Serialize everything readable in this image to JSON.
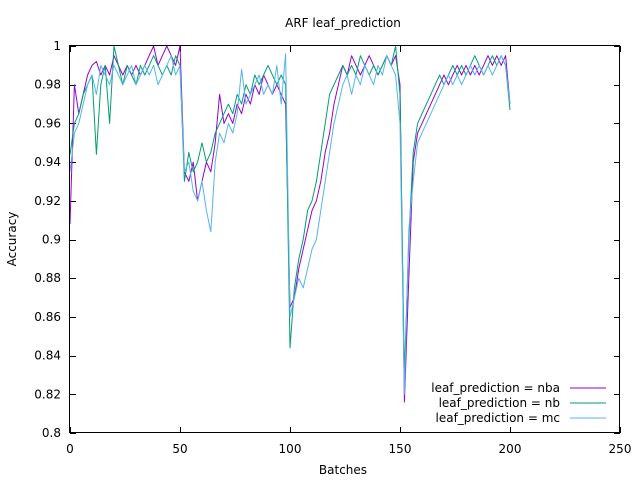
{
  "chart_data": {
    "type": "line",
    "title": "ARF leaf_prediction",
    "xlabel": "Batches",
    "ylabel": "Accuracy",
    "xlim": [
      0,
      250
    ],
    "ylim": [
      0.8,
      1.0
    ],
    "xticks": [
      0,
      50,
      100,
      150,
      200,
      250
    ],
    "yticks": [
      0.8,
      0.82,
      0.84,
      0.86,
      0.88,
      0.9,
      0.92,
      0.94,
      0.96,
      0.98,
      1.0
    ],
    "ytick_labels": [
      "0.8",
      "0.82",
      "0.84",
      "0.86",
      "0.88",
      "0.9",
      "0.92",
      "0.94",
      "0.96",
      "0.98",
      "1"
    ],
    "legend_position": "bottom-right",
    "grid": false,
    "series": [
      {
        "name": "leaf_prediction = nba",
        "color": "#9400d3",
        "x": [
          0,
          2,
          4,
          6,
          8,
          10,
          12,
          14,
          16,
          18,
          20,
          22,
          24,
          26,
          28,
          30,
          32,
          34,
          36,
          38,
          40,
          42,
          44,
          46,
          48,
          50,
          52,
          54,
          56,
          58,
          60,
          62,
          64,
          66,
          68,
          70,
          72,
          74,
          76,
          78,
          80,
          82,
          84,
          86,
          88,
          90,
          92,
          94,
          96,
          98,
          100,
          102,
          104,
          106,
          108,
          110,
          112,
          114,
          116,
          118,
          120,
          122,
          124,
          126,
          128,
          130,
          132,
          134,
          136,
          138,
          140,
          142,
          144,
          146,
          148,
          150,
          152,
          154,
          156,
          158,
          160,
          162,
          164,
          166,
          168,
          170,
          172,
          174,
          176,
          178,
          180,
          182,
          184,
          186,
          188,
          190,
          192,
          194,
          196,
          198,
          200
        ],
        "values": [
          0.908,
          0.98,
          0.965,
          0.975,
          0.985,
          0.99,
          0.992,
          0.985,
          0.99,
          0.985,
          0.995,
          0.99,
          0.985,
          0.99,
          0.985,
          0.99,
          0.985,
          0.99,
          0.995,
          1.0,
          0.99,
          0.995,
          1.0,
          0.995,
          0.99,
          1.0,
          0.935,
          0.93,
          0.94,
          0.92,
          0.93,
          0.94,
          0.935,
          0.95,
          0.975,
          0.96,
          0.965,
          0.96,
          0.97,
          0.965,
          0.975,
          0.97,
          0.98,
          0.975,
          0.985,
          0.98,
          0.975,
          0.98,
          0.975,
          0.97,
          0.865,
          0.87,
          0.885,
          0.895,
          0.905,
          0.915,
          0.92,
          0.93,
          0.945,
          0.955,
          0.97,
          0.98,
          0.99,
          0.985,
          0.995,
          0.99,
          0.985,
          0.99,
          0.995,
          0.99,
          0.985,
          0.99,
          0.995,
          0.99,
          0.995,
          0.98,
          0.816,
          0.88,
          0.94,
          0.955,
          0.96,
          0.965,
          0.97,
          0.975,
          0.98,
          0.985,
          0.98,
          0.985,
          0.99,
          0.985,
          0.99,
          0.985,
          0.99,
          0.985,
          0.99,
          0.995,
          0.99,
          0.995,
          0.99,
          0.995,
          0.97
        ]
      },
      {
        "name": "leaf_prediction = nb",
        "color": "#009e73",
        "x": [
          0,
          2,
          4,
          6,
          8,
          10,
          12,
          14,
          16,
          18,
          20,
          22,
          24,
          26,
          28,
          30,
          32,
          34,
          36,
          38,
          40,
          42,
          44,
          46,
          48,
          50,
          52,
          54,
          56,
          58,
          60,
          62,
          64,
          66,
          68,
          70,
          72,
          74,
          76,
          78,
          80,
          82,
          84,
          86,
          88,
          90,
          92,
          94,
          96,
          98,
          100,
          102,
          104,
          106,
          108,
          110,
          112,
          114,
          116,
          118,
          120,
          122,
          124,
          126,
          128,
          130,
          132,
          134,
          136,
          138,
          140,
          142,
          144,
          146,
          148,
          150,
          152,
          154,
          156,
          158,
          160,
          162,
          164,
          166,
          168,
          170,
          172,
          174,
          176,
          178,
          180,
          182,
          184,
          186,
          188,
          190,
          192,
          194,
          196,
          198,
          200
        ],
        "values": [
          0.944,
          0.96,
          0.965,
          0.975,
          0.98,
          0.985,
          0.944,
          0.98,
          0.99,
          0.96,
          1.0,
          0.99,
          0.98,
          0.99,
          0.985,
          0.98,
          0.99,
          0.985,
          0.99,
          0.995,
          0.99,
          0.985,
          0.99,
          0.985,
          0.995,
          0.99,
          0.93,
          0.945,
          0.935,
          0.94,
          0.95,
          0.94,
          0.945,
          0.955,
          0.96,
          0.965,
          0.97,
          0.965,
          0.975,
          0.97,
          0.98,
          0.975,
          0.985,
          0.98,
          0.985,
          0.99,
          0.985,
          0.98,
          0.985,
          0.98,
          0.844,
          0.875,
          0.89,
          0.9,
          0.915,
          0.92,
          0.93,
          0.945,
          0.96,
          0.975,
          0.98,
          0.985,
          0.99,
          0.985,
          0.99,
          0.985,
          0.995,
          0.99,
          0.985,
          0.99,
          0.985,
          0.99,
          0.995,
          0.99,
          1.0,
          0.975,
          0.83,
          0.9,
          0.945,
          0.96,
          0.965,
          0.97,
          0.975,
          0.98,
          0.985,
          0.98,
          0.985,
          0.99,
          0.985,
          0.99,
          0.985,
          0.99,
          0.995,
          0.99,
          0.985,
          0.99,
          0.995,
          0.99,
          0.995,
          0.99,
          0.967
        ]
      },
      {
        "name": "leaf_prediction = mc",
        "color": "#56b4e9",
        "x": [
          0,
          2,
          4,
          6,
          8,
          10,
          12,
          14,
          16,
          18,
          20,
          22,
          24,
          26,
          28,
          30,
          32,
          34,
          36,
          38,
          40,
          42,
          44,
          46,
          48,
          50,
          52,
          54,
          56,
          58,
          60,
          62,
          64,
          66,
          68,
          70,
          72,
          74,
          76,
          78,
          80,
          82,
          84,
          86,
          88,
          90,
          92,
          94,
          96,
          98,
          100,
          102,
          104,
          106,
          108,
          110,
          112,
          114,
          116,
          118,
          120,
          122,
          124,
          126,
          128,
          130,
          132,
          134,
          136,
          138,
          140,
          142,
          144,
          146,
          148,
          150,
          152,
          154,
          156,
          158,
          160,
          162,
          164,
          166,
          168,
          170,
          172,
          174,
          176,
          178,
          180,
          182,
          184,
          186,
          188,
          190,
          192,
          194,
          196,
          198,
          200
        ],
        "values": [
          0.935,
          0.955,
          0.96,
          0.97,
          0.98,
          0.985,
          0.975,
          0.99,
          0.985,
          0.98,
          0.99,
          0.985,
          0.98,
          0.985,
          0.99,
          0.98,
          0.985,
          0.99,
          0.985,
          0.99,
          0.98,
          0.985,
          0.99,
          0.995,
          0.985,
          0.99,
          0.935,
          0.94,
          0.925,
          0.92,
          0.93,
          0.915,
          0.904,
          0.94,
          0.955,
          0.95,
          0.96,
          0.955,
          0.965,
          0.988,
          0.97,
          0.975,
          0.98,
          0.985,
          0.975,
          0.98,
          0.975,
          0.99,
          0.97,
          0.996,
          0.86,
          0.87,
          0.88,
          0.875,
          0.885,
          0.895,
          0.9,
          0.915,
          0.93,
          0.945,
          0.96,
          0.97,
          0.98,
          0.985,
          0.975,
          0.985,
          0.98,
          0.99,
          0.985,
          0.98,
          0.99,
          0.985,
          0.995,
          0.99,
          0.985,
          0.96,
          0.82,
          0.905,
          0.93,
          0.95,
          0.955,
          0.96,
          0.965,
          0.97,
          0.975,
          0.98,
          0.985,
          0.98,
          0.985,
          0.98,
          0.985,
          0.99,
          0.985,
          0.99,
          0.985,
          0.99,
          0.985,
          0.99,
          0.995,
          0.99,
          0.97
        ]
      }
    ]
  }
}
